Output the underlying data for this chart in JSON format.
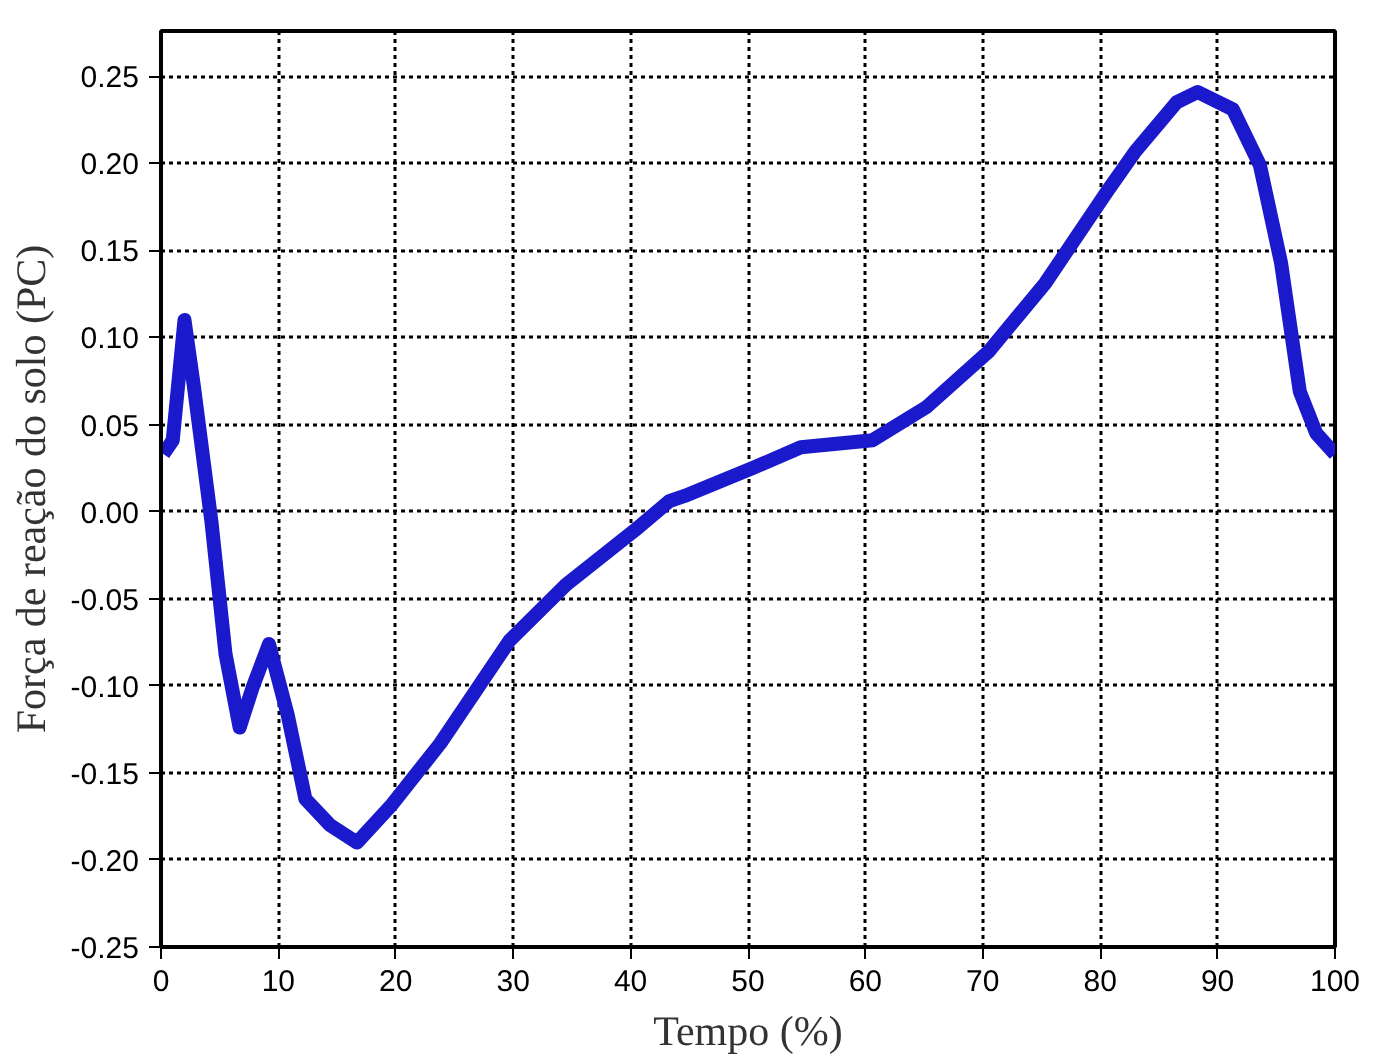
{
  "chart_data": {
    "type": "line",
    "xlabel": "Tempo (%)",
    "ylabel": "Força de reação do solo (PC)",
    "x": [
      0.2,
      1,
      2,
      2.8,
      4.3,
      5.5,
      6.7,
      7.8,
      9.2,
      10.8,
      12.3,
      14.4,
      16.7,
      19.7,
      23.8,
      29.7,
      34.5,
      40.3,
      43.3,
      44.6,
      50.4,
      54.5,
      60.6,
      65.2,
      70.5,
      75.3,
      80.6,
      83,
      86.5,
      88.3,
      91.3,
      93.6,
      95.4,
      97,
      98.4,
      100
    ],
    "series": [
      {
        "color": "#1a1acc",
        "values": [
          0.033,
          0.041,
          0.11,
          0.072,
          -0.006,
          -0.082,
          -0.124,
          -0.101,
          -0.076,
          -0.117,
          -0.165,
          -0.18,
          -0.19,
          -0.168,
          -0.133,
          -0.074,
          -0.042,
          -0.011,
          0.006,
          0.009,
          0.025,
          0.037,
          0.041,
          0.06,
          0.092,
          0.131,
          0.184,
          0.207,
          0.235,
          0.241,
          0.231,
          0.199,
          0.143,
          0.069,
          0.045,
          0.033
        ]
      }
    ],
    "xlim": [
      0,
      100
    ],
    "xticks": [
      0,
      10,
      20,
      30,
      40,
      50,
      60,
      70,
      80,
      90,
      100
    ],
    "ylim": [
      -0.25,
      0.276
    ],
    "yticks": [
      {
        "value": -0.25,
        "label": "-0.25"
      },
      {
        "value": -0.2,
        "label": "-0.20"
      },
      {
        "value": -0.15,
        "label": "-0.15"
      },
      {
        "value": -0.1,
        "label": "-0.10"
      },
      {
        "value": -0.05,
        "label": "-0.05"
      },
      {
        "value": 0,
        "label": "0.00"
      },
      {
        "value": 0.05,
        "label": "0.05"
      },
      {
        "value": 0.1,
        "label": "0.10"
      },
      {
        "value": 0.15,
        "label": "0.15"
      },
      {
        "value": 0.2,
        "label": "0.20"
      },
      {
        "value": 0.25,
        "label": "0.25"
      }
    ],
    "grid": true,
    "marker": "none",
    "line_style": "solid"
  }
}
